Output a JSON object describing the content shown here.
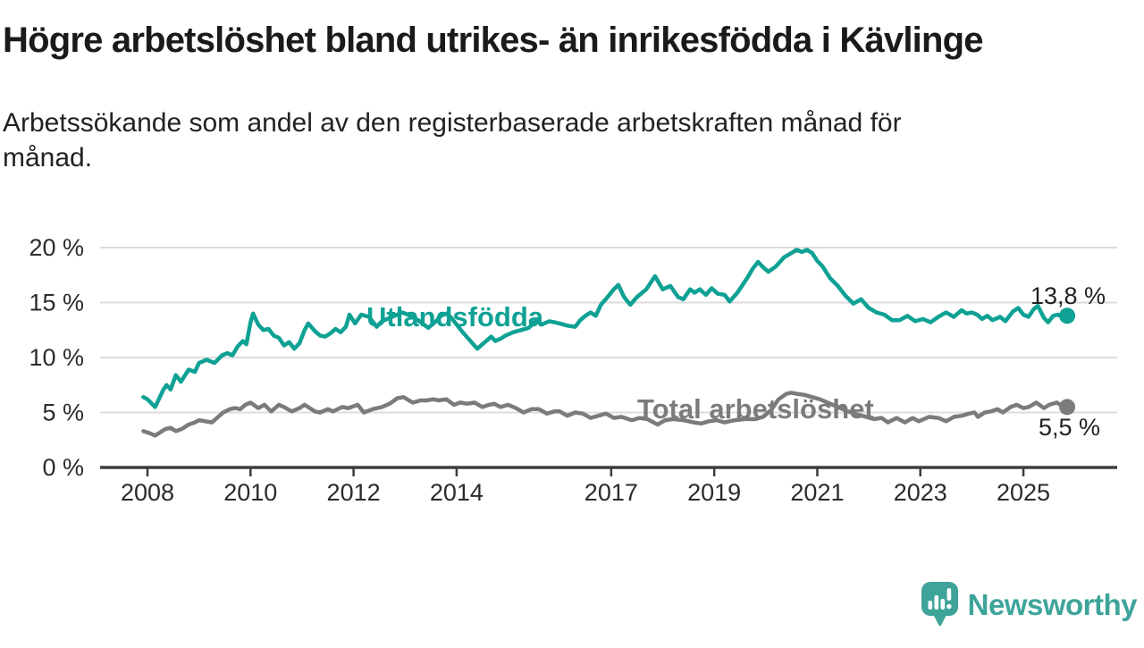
{
  "page": {
    "title": "Högre arbetslöshet bland utrikes- än inrikesfödda i Kävlinge",
    "subtitle_lines": [
      "Arbetssökande som andel av den registerbaserade arbetskraften månad för",
      "månad."
    ]
  },
  "branding": {
    "name": "Newsworthy",
    "logo_icon": "bar-chart-speech-bubble",
    "color": "#3EA49A"
  },
  "chart_data": {
    "type": "line",
    "title": "Högre arbetslöshet bland utrikes- än inrikesfödda i Kävlinge",
    "xlabel": "",
    "ylabel": "",
    "x_unit": "decimal-year (månad för månad)",
    "xlim": [
      2007.75,
      2026.2
    ],
    "ylim": [
      0,
      20
    ],
    "grid": true,
    "legend_position": "inline-labels",
    "yticks": [
      {
        "value": 0,
        "label": "0 %"
      },
      {
        "value": 5,
        "label": "5 %"
      },
      {
        "value": 10,
        "label": "10 %"
      },
      {
        "value": 15,
        "label": "15 %"
      },
      {
        "value": 20,
        "label": "20 %"
      }
    ],
    "xticks": [
      {
        "value": 2008,
        "label": "2008"
      },
      {
        "value": 2010,
        "label": "2010"
      },
      {
        "value": 2012,
        "label": "2012"
      },
      {
        "value": 2014,
        "label": "2014"
      },
      {
        "value": 2017,
        "label": "2017"
      },
      {
        "value": 2019,
        "label": "2019"
      },
      {
        "value": 2021,
        "label": "2021"
      },
      {
        "value": 2023,
        "label": "2023"
      },
      {
        "value": 2025,
        "label": "2025"
      }
    ],
    "series": [
      {
        "name": "Utlandsfödda",
        "key": "utlandsfodda",
        "color": "#0EA194",
        "end_label": "13,8 %",
        "end_value": 13.8,
        "points": [
          [
            2007.92,
            6.4
          ],
          [
            2008.0,
            6.2
          ],
          [
            2008.15,
            5.5
          ],
          [
            2008.3,
            7.0
          ],
          [
            2008.37,
            7.5
          ],
          [
            2008.45,
            7.1
          ],
          [
            2008.55,
            8.4
          ],
          [
            2008.65,
            7.8
          ],
          [
            2008.8,
            8.9
          ],
          [
            2008.92,
            8.7
          ],
          [
            2009.0,
            9.5
          ],
          [
            2009.15,
            9.8
          ],
          [
            2009.3,
            9.5
          ],
          [
            2009.45,
            10.2
          ],
          [
            2009.55,
            10.4
          ],
          [
            2009.65,
            10.2
          ],
          [
            2009.75,
            11.0
          ],
          [
            2009.85,
            11.5
          ],
          [
            2009.92,
            11.2
          ],
          [
            2010.0,
            13.2
          ],
          [
            2010.05,
            14.0
          ],
          [
            2010.15,
            13.0
          ],
          [
            2010.25,
            12.5
          ],
          [
            2010.35,
            12.6
          ],
          [
            2010.45,
            12.0
          ],
          [
            2010.55,
            11.8
          ],
          [
            2010.65,
            11.1
          ],
          [
            2010.75,
            11.4
          ],
          [
            2010.85,
            10.8
          ],
          [
            2010.95,
            11.3
          ],
          [
            2011.05,
            12.5
          ],
          [
            2011.12,
            13.1
          ],
          [
            2011.25,
            12.4
          ],
          [
            2011.35,
            12.0
          ],
          [
            2011.45,
            11.9
          ],
          [
            2011.55,
            12.2
          ],
          [
            2011.65,
            12.6
          ],
          [
            2011.75,
            12.3
          ],
          [
            2011.85,
            12.8
          ],
          [
            2011.92,
            13.9
          ],
          [
            2012.03,
            13.1
          ],
          [
            2012.15,
            13.9
          ],
          [
            2012.3,
            13.7
          ],
          [
            2012.45,
            12.8
          ],
          [
            2012.55,
            13.3
          ],
          [
            2012.7,
            13.6
          ],
          [
            2012.85,
            13.9
          ],
          [
            2012.95,
            14.1
          ],
          [
            2013.1,
            13.8
          ],
          [
            2013.25,
            13.4
          ],
          [
            2013.45,
            12.7
          ],
          [
            2013.6,
            13.3
          ],
          [
            2013.7,
            13.8
          ],
          [
            2013.8,
            14.0
          ],
          [
            2013.9,
            13.6
          ],
          [
            2014.0,
            13.0
          ],
          [
            2014.1,
            12.4
          ],
          [
            2014.25,
            11.6
          ],
          [
            2014.4,
            10.8
          ],
          [
            2014.5,
            11.2
          ],
          [
            2014.6,
            11.6
          ],
          [
            2014.67,
            11.9
          ],
          [
            2014.75,
            11.5
          ],
          [
            2014.85,
            11.7
          ],
          [
            2014.95,
            12.0
          ],
          [
            2015.1,
            12.3
          ],
          [
            2015.25,
            12.5
          ],
          [
            2015.4,
            12.7
          ],
          [
            2015.55,
            13.4
          ],
          [
            2015.65,
            13.0
          ],
          [
            2015.8,
            13.3
          ],
          [
            2015.9,
            13.2
          ],
          [
            2016.0,
            13.1
          ],
          [
            2016.15,
            12.9
          ],
          [
            2016.3,
            12.8
          ],
          [
            2016.4,
            13.4
          ],
          [
            2016.5,
            13.8
          ],
          [
            2016.6,
            14.1
          ],
          [
            2016.7,
            13.8
          ],
          [
            2016.8,
            14.8
          ],
          [
            2016.93,
            15.5
          ],
          [
            2017.05,
            16.2
          ],
          [
            2017.14,
            16.6
          ],
          [
            2017.25,
            15.5
          ],
          [
            2017.37,
            14.8
          ],
          [
            2017.5,
            15.5
          ],
          [
            2017.68,
            16.2
          ],
          [
            2017.85,
            17.4
          ],
          [
            2018.0,
            16.2
          ],
          [
            2018.15,
            16.5
          ],
          [
            2018.3,
            15.5
          ],
          [
            2018.4,
            15.3
          ],
          [
            2018.53,
            16.2
          ],
          [
            2018.62,
            15.9
          ],
          [
            2018.72,
            16.2
          ],
          [
            2018.84,
            15.7
          ],
          [
            2018.95,
            16.3
          ],
          [
            2019.07,
            15.8
          ],
          [
            2019.2,
            15.7
          ],
          [
            2019.3,
            15.1
          ],
          [
            2019.45,
            15.9
          ],
          [
            2019.55,
            16.6
          ],
          [
            2019.65,
            17.3
          ],
          [
            2019.75,
            18.1
          ],
          [
            2019.85,
            18.7
          ],
          [
            2019.95,
            18.2
          ],
          [
            2020.05,
            17.8
          ],
          [
            2020.2,
            18.3
          ],
          [
            2020.35,
            19.1
          ],
          [
            2020.5,
            19.5
          ],
          [
            2020.6,
            19.8
          ],
          [
            2020.7,
            19.6
          ],
          [
            2020.8,
            19.8
          ],
          [
            2020.9,
            19.5
          ],
          [
            2021.0,
            18.8
          ],
          [
            2021.1,
            18.3
          ],
          [
            2021.25,
            17.2
          ],
          [
            2021.4,
            16.5
          ],
          [
            2021.55,
            15.6
          ],
          [
            2021.7,
            14.9
          ],
          [
            2021.85,
            15.3
          ],
          [
            2022.0,
            14.5
          ],
          [
            2022.15,
            14.1
          ],
          [
            2022.3,
            13.9
          ],
          [
            2022.45,
            13.4
          ],
          [
            2022.6,
            13.4
          ],
          [
            2022.75,
            13.8
          ],
          [
            2022.9,
            13.3
          ],
          [
            2023.05,
            13.5
          ],
          [
            2023.2,
            13.2
          ],
          [
            2023.35,
            13.7
          ],
          [
            2023.5,
            14.1
          ],
          [
            2023.65,
            13.7
          ],
          [
            2023.8,
            14.3
          ],
          [
            2023.9,
            14.0
          ],
          [
            2024.0,
            14.1
          ],
          [
            2024.1,
            13.9
          ],
          [
            2024.2,
            13.5
          ],
          [
            2024.3,
            13.8
          ],
          [
            2024.4,
            13.4
          ],
          [
            2024.55,
            13.7
          ],
          [
            2024.65,
            13.3
          ],
          [
            2024.8,
            14.2
          ],
          [
            2024.9,
            14.5
          ],
          [
            2025.0,
            13.9
          ],
          [
            2025.1,
            13.7
          ],
          [
            2025.2,
            14.4
          ],
          [
            2025.28,
            14.7
          ],
          [
            2025.4,
            13.6
          ],
          [
            2025.48,
            13.2
          ],
          [
            2025.58,
            13.8
          ],
          [
            2025.67,
            13.9
          ],
          [
            2025.75,
            13.7
          ],
          [
            2025.85,
            13.8
          ]
        ]
      },
      {
        "name": "Total arbetslöshet",
        "key": "total-arbetsloshet",
        "color": "#7B7B7B",
        "end_label": "5,5 %",
        "end_value": 5.5,
        "points": [
          [
            2007.92,
            3.3
          ],
          [
            2008.05,
            3.1
          ],
          [
            2008.15,
            2.9
          ],
          [
            2008.25,
            3.2
          ],
          [
            2008.35,
            3.5
          ],
          [
            2008.45,
            3.6
          ],
          [
            2008.55,
            3.3
          ],
          [
            2008.67,
            3.5
          ],
          [
            2008.8,
            3.9
          ],
          [
            2008.92,
            4.1
          ],
          [
            2009.0,
            4.3
          ],
          [
            2009.12,
            4.2
          ],
          [
            2009.25,
            4.1
          ],
          [
            2009.35,
            4.5
          ],
          [
            2009.47,
            5.0
          ],
          [
            2009.6,
            5.3
          ],
          [
            2009.7,
            5.4
          ],
          [
            2009.8,
            5.3
          ],
          [
            2009.9,
            5.7
          ],
          [
            2010.0,
            5.9
          ],
          [
            2010.15,
            5.4
          ],
          [
            2010.27,
            5.7
          ],
          [
            2010.4,
            5.1
          ],
          [
            2010.55,
            5.7
          ],
          [
            2010.65,
            5.5
          ],
          [
            2010.8,
            5.1
          ],
          [
            2010.95,
            5.4
          ],
          [
            2011.05,
            5.7
          ],
          [
            2011.15,
            5.4
          ],
          [
            2011.25,
            5.1
          ],
          [
            2011.35,
            5.0
          ],
          [
            2011.5,
            5.3
          ],
          [
            2011.6,
            5.1
          ],
          [
            2011.78,
            5.5
          ],
          [
            2011.9,
            5.4
          ],
          [
            2012.08,
            5.7
          ],
          [
            2012.2,
            5.0
          ],
          [
            2012.37,
            5.3
          ],
          [
            2012.55,
            5.5
          ],
          [
            2012.7,
            5.8
          ],
          [
            2012.85,
            6.3
          ],
          [
            2012.97,
            6.4
          ],
          [
            2013.15,
            5.9
          ],
          [
            2013.3,
            6.1
          ],
          [
            2013.42,
            6.1
          ],
          [
            2013.55,
            6.2
          ],
          [
            2013.65,
            6.1
          ],
          [
            2013.8,
            6.2
          ],
          [
            2013.95,
            5.7
          ],
          [
            2014.07,
            5.9
          ],
          [
            2014.2,
            5.8
          ],
          [
            2014.35,
            5.9
          ],
          [
            2014.5,
            5.5
          ],
          [
            2014.63,
            5.7
          ],
          [
            2014.73,
            5.8
          ],
          [
            2014.85,
            5.5
          ],
          [
            2015.0,
            5.7
          ],
          [
            2015.15,
            5.4
          ],
          [
            2015.3,
            5.0
          ],
          [
            2015.45,
            5.3
          ],
          [
            2015.6,
            5.3
          ],
          [
            2015.75,
            4.9
          ],
          [
            2015.9,
            5.1
          ],
          [
            2016.0,
            5.1
          ],
          [
            2016.15,
            4.7
          ],
          [
            2016.3,
            5.0
          ],
          [
            2016.45,
            4.9
          ],
          [
            2016.6,
            4.5
          ],
          [
            2016.75,
            4.7
          ],
          [
            2016.9,
            4.9
          ],
          [
            2017.05,
            4.5
          ],
          [
            2017.2,
            4.6
          ],
          [
            2017.4,
            4.3
          ],
          [
            2017.55,
            4.5
          ],
          [
            2017.7,
            4.4
          ],
          [
            2017.9,
            3.9
          ],
          [
            2018.05,
            4.3
          ],
          [
            2018.2,
            4.4
          ],
          [
            2018.4,
            4.3
          ],
          [
            2018.6,
            4.1
          ],
          [
            2018.75,
            4.0
          ],
          [
            2018.9,
            4.2
          ],
          [
            2019.05,
            4.3
          ],
          [
            2019.2,
            4.1
          ],
          [
            2019.4,
            4.3
          ],
          [
            2019.6,
            4.4
          ],
          [
            2019.8,
            4.4
          ],
          [
            2019.95,
            4.6
          ],
          [
            2020.1,
            5.2
          ],
          [
            2020.25,
            6.2
          ],
          [
            2020.4,
            6.7
          ],
          [
            2020.5,
            6.8
          ],
          [
            2020.6,
            6.7
          ],
          [
            2020.75,
            6.6
          ],
          [
            2020.9,
            6.4
          ],
          [
            2021.05,
            6.2
          ],
          [
            2021.2,
            5.9
          ],
          [
            2021.4,
            5.5
          ],
          [
            2021.6,
            5.1
          ],
          [
            2021.8,
            4.8
          ],
          [
            2021.95,
            4.6
          ],
          [
            2022.1,
            4.4
          ],
          [
            2022.25,
            4.5
          ],
          [
            2022.37,
            4.1
          ],
          [
            2022.54,
            4.5
          ],
          [
            2022.7,
            4.1
          ],
          [
            2022.85,
            4.5
          ],
          [
            2022.97,
            4.2
          ],
          [
            2023.17,
            4.6
          ],
          [
            2023.35,
            4.5
          ],
          [
            2023.5,
            4.2
          ],
          [
            2023.65,
            4.6
          ],
          [
            2023.8,
            4.7
          ],
          [
            2023.95,
            4.9
          ],
          [
            2024.05,
            5.0
          ],
          [
            2024.12,
            4.6
          ],
          [
            2024.25,
            5.0
          ],
          [
            2024.37,
            5.1
          ],
          [
            2024.5,
            5.3
          ],
          [
            2024.6,
            5.0
          ],
          [
            2024.75,
            5.5
          ],
          [
            2024.87,
            5.7
          ],
          [
            2025.0,
            5.4
          ],
          [
            2025.1,
            5.5
          ],
          [
            2025.25,
            5.9
          ],
          [
            2025.4,
            5.4
          ],
          [
            2025.5,
            5.7
          ],
          [
            2025.65,
            5.9
          ],
          [
            2025.75,
            5.6
          ],
          [
            2025.85,
            5.5
          ]
        ]
      }
    ]
  }
}
